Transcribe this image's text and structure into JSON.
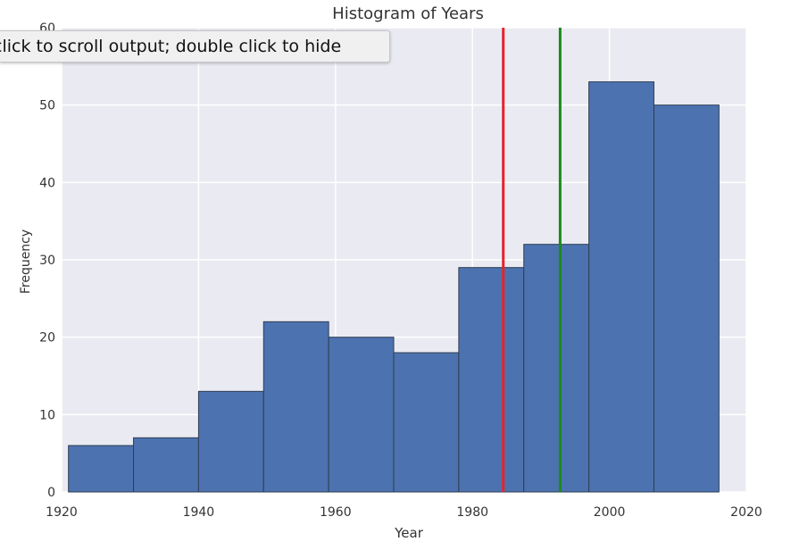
{
  "tooltip": {
    "text": "click to scroll output; double click to hide"
  },
  "colors": {
    "bar_fill": "#4c72b0",
    "bar_edge": "#2f3d52",
    "plot_bg": "#eaeaf2",
    "grid": "#ffffff",
    "mean_line": "#e8232a",
    "median_line": "#1a8a1a"
  },
  "chart_data": {
    "type": "bar",
    "title": "Histogram of Years",
    "xlabel": "Year",
    "ylabel": "Frequency",
    "xlim": [
      1920,
      2020
    ],
    "ylim": [
      0,
      60
    ],
    "xticks": [
      1920,
      1940,
      1960,
      1980,
      2000,
      2020
    ],
    "yticks": [
      0,
      10,
      20,
      30,
      40,
      50,
      60
    ],
    "grid": true,
    "bins": [
      {
        "start": 1921,
        "end": 1930.5,
        "value": 6
      },
      {
        "start": 1930.5,
        "end": 1940,
        "value": 7
      },
      {
        "start": 1940,
        "end": 1949.5,
        "value": 13
      },
      {
        "start": 1949.5,
        "end": 1959,
        "value": 22
      },
      {
        "start": 1959,
        "end": 1968.5,
        "value": 20
      },
      {
        "start": 1968.5,
        "end": 1978,
        "value": 18
      },
      {
        "start": 1978,
        "end": 1987.5,
        "value": 29
      },
      {
        "start": 1987.5,
        "end": 1997,
        "value": 32
      },
      {
        "start": 1997,
        "end": 2006.5,
        "value": 53
      },
      {
        "start": 2006.5,
        "end": 2016,
        "value": 50
      }
    ],
    "vlines": [
      {
        "x": 1984.5,
        "color": "#e8232a"
      },
      {
        "x": 1992.8,
        "color": "#1a8a1a"
      }
    ]
  }
}
